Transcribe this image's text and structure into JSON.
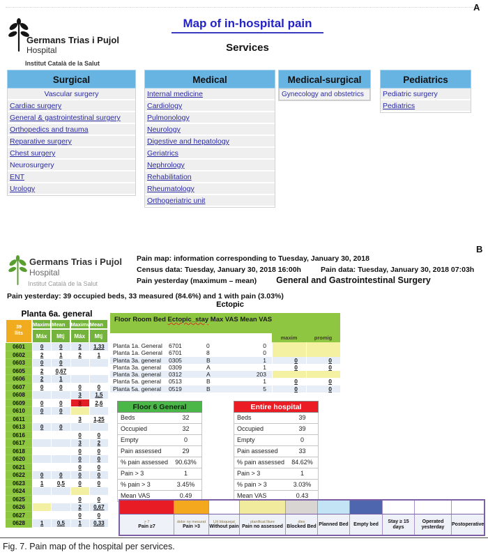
{
  "figure": {
    "panel_a_label": "A",
    "panel_b_label": "B",
    "caption_prefix": "Fig. 7.",
    "caption_text": " Pain map of the hospital per services."
  },
  "logo": {
    "name": "Germans Trias i Pujol",
    "type": "Hospital",
    "org": "Institut Català de la Salut"
  },
  "panel_a": {
    "title": "Map of in-hospital pain",
    "subtitle": "Services",
    "columns": [
      {
        "header": "Surgical",
        "items": [
          {
            "label": "Vascular surgery",
            "underline": false,
            "align": "center"
          },
          {
            "label": "Cardiac surgery",
            "underline": true
          },
          {
            "label": "General & gastrointestinal surgery",
            "underline": true
          },
          {
            "label": "Orthopedics and trauma",
            "underline": true
          },
          {
            "label": "Reparative surgery",
            "underline": true
          },
          {
            "label": "Chest surgery",
            "underline": true
          },
          {
            "label": "Neurosurgery",
            "underline": false
          },
          {
            "label": "ENT",
            "underline": true
          },
          {
            "label": "Urology",
            "underline": true
          }
        ]
      },
      {
        "header": "Medical",
        "items": [
          {
            "label": "Internal medicine",
            "underline": true
          },
          {
            "label": "Cardiology",
            "underline": true
          },
          {
            "label": "Pulmonology",
            "underline": true
          },
          {
            "label": "Neurology",
            "underline": true
          },
          {
            "label": "Digestive and hepatology",
            "underline": true
          },
          {
            "label": "Geriatrics",
            "underline": true
          },
          {
            "label": "Nephrology",
            "underline": true
          },
          {
            "label": "Rehabilitation",
            "underline": true
          },
          {
            "label": "Rheumatology",
            "underline": true
          },
          {
            "label": "Orthogeriatric unit",
            "underline": true
          }
        ]
      },
      {
        "header": "Medical-surgical",
        "items": [
          {
            "label": "Gynecology and obstetrics",
            "underline": false
          }
        ]
      },
      {
        "header": "Pediatrics",
        "items": [
          {
            "label": "Pediatric surgery",
            "underline": false
          },
          {
            "label": "Pediatrics",
            "underline": true
          }
        ]
      }
    ]
  },
  "panel_b": {
    "info_line_1": "Pain map: information corresponding to Tuesday, January 30, 2018",
    "census": "Census data: Tuesday, January 30, 2018 16:00h",
    "pain_data": "Pain data: Tuesday, January 30, 2018 07:03h",
    "pain_yesterday_label": "Pain yesterday (maximum – mean)",
    "service_name": "General and Gastrointestinal Surgery",
    "summary_line": "Pain yesterday: 39 occupied beds, 33 measured (84.6%) and 1 with pain (3.03%)",
    "ectopic_title": "Ectopic",
    "ward_table": {
      "title": "Planta 6a. general",
      "beds_count": "39",
      "beds_unit": "llits",
      "group_headers": [
        "Maximum",
        "Mean",
        "Maximum",
        "Mean"
      ],
      "sub_headers": [
        "Máx",
        "Mtj",
        "Máx",
        "Mtj"
      ],
      "rows": [
        {
          "bed": "0601",
          "values": [
            "0",
            "0",
            "2",
            "1,33"
          ]
        },
        {
          "bed": "0602",
          "values": [
            "2",
            "1",
            "2",
            "1"
          ]
        },
        {
          "bed": "0603",
          "values": [
            "0",
            "0",
            "",
            ""
          ]
        },
        {
          "bed": "0605",
          "values": [
            "2",
            "0,67",
            "",
            ""
          ]
        },
        {
          "bed": "0606",
          "values": [
            "2",
            "1",
            "",
            ""
          ]
        },
        {
          "bed": "0607",
          "values": [
            "0",
            "0",
            "0",
            "0"
          ]
        },
        {
          "bed": "0608",
          "values": [
            "",
            "",
            "3",
            "1,5"
          ]
        },
        {
          "bed": "0609",
          "values": [
            "0",
            "0",
            "8",
            "2,6"
          ],
          "highlight": {
            "col": 2,
            "color": "red"
          }
        },
        {
          "bed": "0610",
          "values": [
            "0",
            "0",
            "",
            ""
          ],
          "highlight": {
            "col": 2,
            "color": "yellow"
          }
        },
        {
          "bed": "0611",
          "values": [
            "",
            "",
            "3",
            "1,25"
          ]
        },
        {
          "bed": "0613",
          "values": [
            "0",
            "0",
            "",
            ""
          ]
        },
        {
          "bed": "0616",
          "values": [
            "",
            "",
            "0",
            "0"
          ]
        },
        {
          "bed": "0617",
          "values": [
            "",
            "",
            "3",
            "2"
          ]
        },
        {
          "bed": "0618",
          "values": [
            "",
            "",
            "0",
            "0"
          ]
        },
        {
          "bed": "0620",
          "values": [
            "",
            "",
            "0",
            "0"
          ]
        },
        {
          "bed": "0621",
          "values": [
            "",
            "",
            "0",
            "0"
          ]
        },
        {
          "bed": "0622",
          "values": [
            "0",
            "0",
            "0",
            "0"
          ]
        },
        {
          "bed": "0623",
          "values": [
            "1",
            "0,5",
            "0",
            "0"
          ]
        },
        {
          "bed": "0624",
          "values": [
            "",
            "",
            "",
            ""
          ],
          "highlight": {
            "col": 2,
            "color": "yellow"
          }
        },
        {
          "bed": "0625",
          "values": [
            "",
            "",
            "0",
            "0"
          ]
        },
        {
          "bed": "0626",
          "values": [
            "",
            "",
            "2",
            "0,67"
          ],
          "highlight": {
            "col": 0,
            "color": "yellow"
          }
        },
        {
          "bed": "0627",
          "values": [
            "",
            "",
            "0",
            "0"
          ]
        },
        {
          "bed": "0628",
          "values": [
            "1",
            "0,5",
            "1",
            "0,33"
          ]
        }
      ]
    },
    "ectopic_table": {
      "header_pre": "Floor Room Bed ",
      "header_word": "Ectopic_stay",
      "header_post": " Max VAS Mean VAS",
      "sub_headers": [
        "maxim",
        "promig"
      ],
      "rows": [
        {
          "floor": "Planta 1a. General",
          "room": "6701",
          "bed": "0",
          "stay": "0",
          "max": "",
          "mean": "",
          "yellow": true
        },
        {
          "floor": "Planta 1a. General",
          "room": "6701",
          "bed": "8",
          "stay": "0",
          "max": "",
          "mean": "",
          "yellow": true
        },
        {
          "floor": "Planta 3a. general",
          "room": "0305",
          "bed": "B",
          "stay": "1",
          "max": "0",
          "mean": "0"
        },
        {
          "floor": "Planta 3a. general",
          "room": "0309",
          "bed": "A",
          "stay": "1",
          "max": "0",
          "mean": "0"
        },
        {
          "floor": "Planta 3a. general",
          "room": "0312",
          "bed": "A",
          "stay": "203",
          "max": "",
          "mean": "",
          "yellow": true
        },
        {
          "floor": "Planta 5a. general",
          "room": "0513",
          "bed": "B",
          "stay": "1",
          "max": "0",
          "mean": "0"
        },
        {
          "floor": "Planta 5a. general",
          "room": "0519",
          "bed": "B",
          "stay": "5",
          "max": "0",
          "mean": "0"
        }
      ]
    },
    "summary_tables": [
      {
        "title": "Floor 6 General",
        "header_color": "#4cb749",
        "header_text_color": "#0e220e",
        "rows": [
          [
            "Beds",
            "32"
          ],
          [
            "Occupied",
            "32"
          ],
          [
            "Empty",
            "0"
          ],
          [
            "Pain assessed",
            "29"
          ],
          [
            "% pain assessed",
            "90.63%"
          ],
          [
            "Pain > 3",
            "1"
          ],
          [
            "% pain > 3",
            "3.45%"
          ],
          [
            "Mean VAS",
            "0.49"
          ]
        ]
      },
      {
        "title": "Entire hospital",
        "header_color": "#ec1c24",
        "header_text_color": "#ffffff",
        "rows": [
          [
            "Beds",
            "39"
          ],
          [
            "Occupied",
            "39"
          ],
          [
            "Empty",
            "0"
          ],
          [
            "Pain assessed",
            "33"
          ],
          [
            "% pain assessed",
            "84.62%"
          ],
          [
            "Pain > 3",
            "1"
          ],
          [
            "% pain > 3",
            "3.03%"
          ],
          [
            "Mean VAS",
            "0.43"
          ]
        ]
      }
    ],
    "legend": {
      "items": [
        {
          "swatch": "#e81c24",
          "small": "> 7",
          "label": "Pain ≥7"
        },
        {
          "swatch": "#f3a81d",
          "small": "dolor no mesurat",
          "label": "Pain >3"
        },
        {
          "swatch": "#ffffff",
          "small": "Llit bloquejat",
          "label": "Without pain"
        },
        {
          "swatch": "#f1ec9d",
          "small": "planificat  lliure",
          "label": "Pain no assessed"
        },
        {
          "swatch": "#d8d5d3",
          "small": "dies",
          "label": "Blocked Bed"
        },
        {
          "swatch": "#c2e4f5",
          "small": "",
          "label": "Planned Bed"
        },
        {
          "swatch": "#4d66ae",
          "small": "",
          "label": "Empty bed"
        },
        {
          "swatch": "#ffffff",
          "small": "",
          "label": "Stay ≥ 15 days"
        },
        {
          "swatch": "#ffffff",
          "small": "",
          "label": "Operated yesterday"
        },
        {
          "swatch": "#ffffff",
          "small": "",
          "label": "Postoperative"
        }
      ]
    }
  }
}
